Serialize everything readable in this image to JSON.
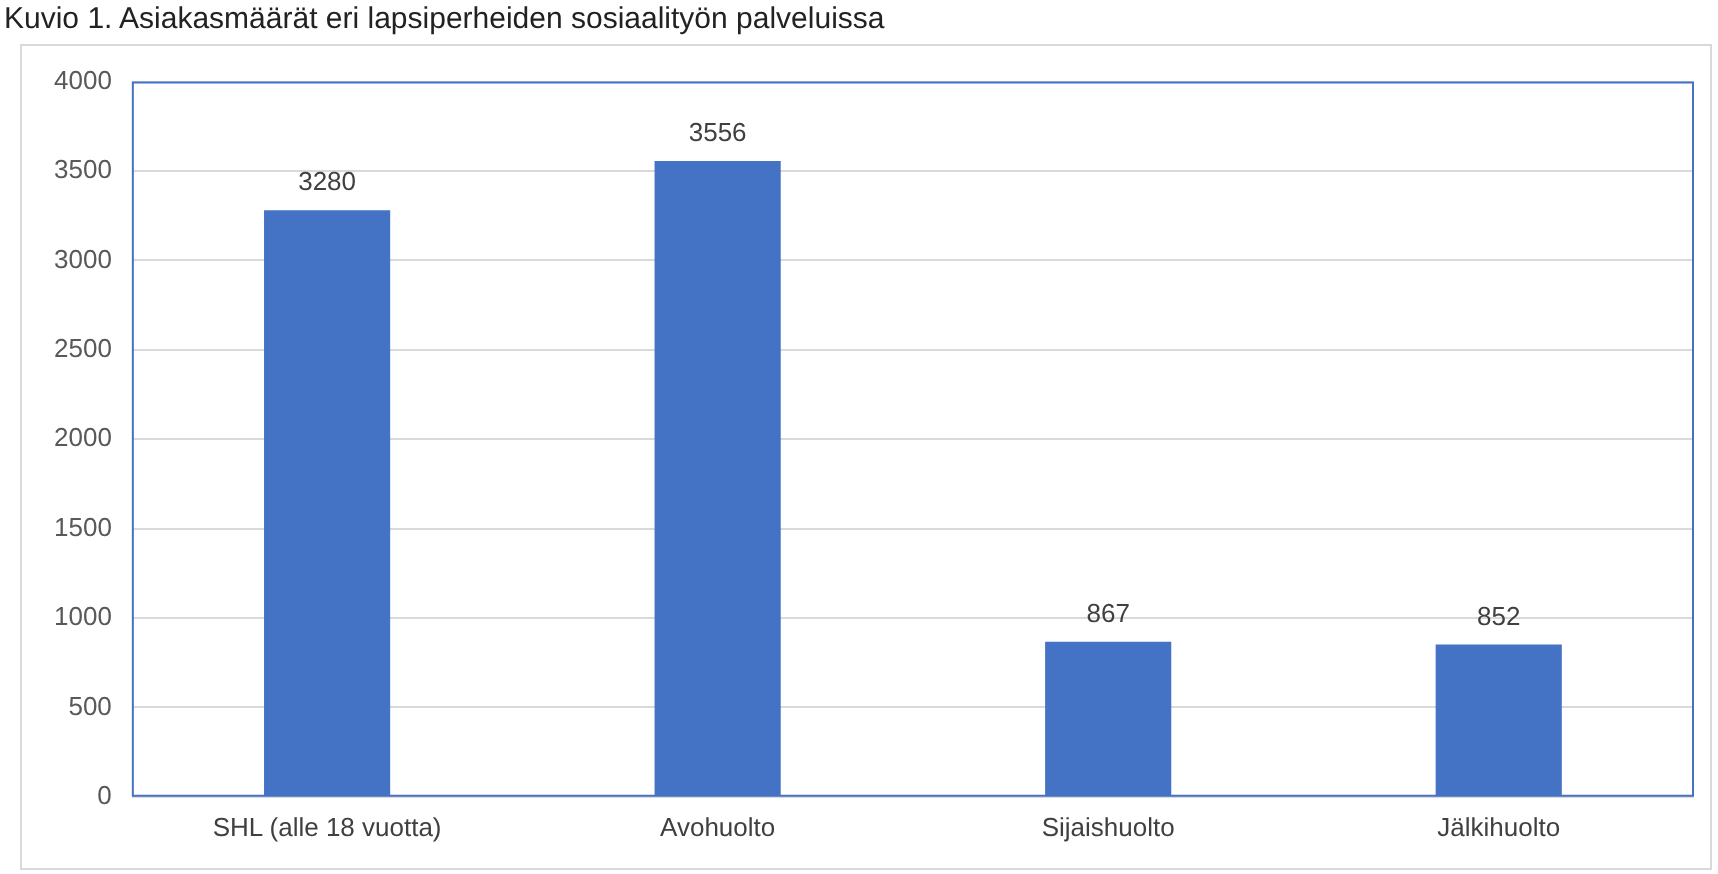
{
  "chart_data": {
    "type": "bar",
    "title": "Kuvio 1. Asiakasmäärät eri lapsiperheiden sosiaalityön palveluissa",
    "categories": [
      "SHL (alle 18 vuotta)",
      "Avohuolto",
      "Sijaishuolto",
      "Jälkihuolto"
    ],
    "values": [
      3280,
      3556,
      867,
      852
    ],
    "color": "#4472c4",
    "ylim": [
      0,
      4000
    ],
    "yticks": [
      0,
      500,
      1000,
      1500,
      2000,
      2500,
      3000,
      3500,
      4000
    ],
    "grid": "y",
    "data_labels": true
  }
}
